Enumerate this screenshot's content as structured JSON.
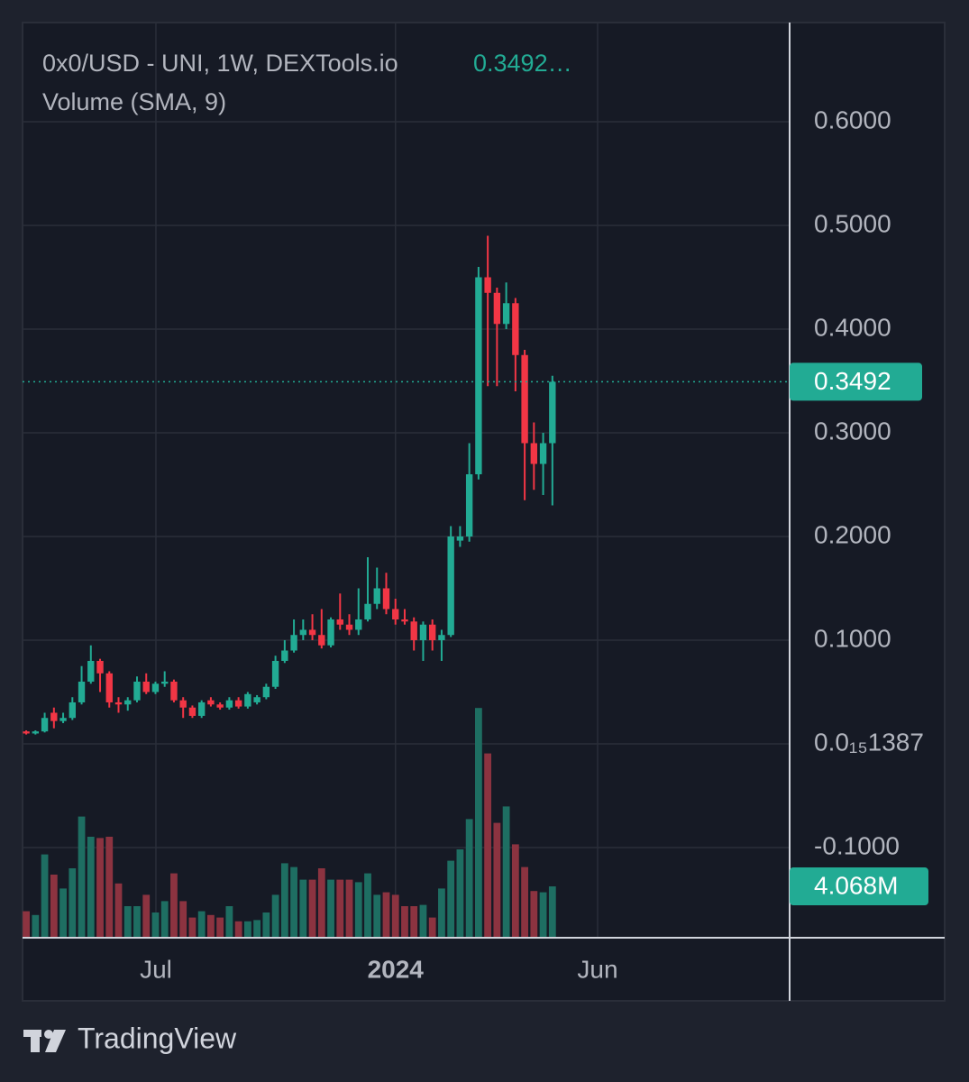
{
  "chart_data": {
    "type": "candlestick",
    "title": "0x0/USD - UNI, 1W, DEXTools.io",
    "title_value": "0.3492…",
    "subtitle": "Volume (SMA, 9)",
    "categories": [
      null,
      null,
      null,
      null,
      null,
      null,
      null,
      null,
      null,
      null,
      null,
      null,
      null,
      null,
      null,
      null,
      null,
      null,
      null,
      null,
      null,
      null,
      null,
      null,
      null,
      null,
      null,
      null,
      null,
      null,
      null,
      null,
      null,
      null,
      null,
      null,
      null,
      null,
      null,
      null,
      null,
      null,
      null,
      null,
      null,
      null,
      null,
      null,
      null,
      null,
      null,
      null,
      null,
      null,
      null,
      null,
      null,
      null
    ],
    "open": [
      0.012,
      0.01,
      0.012,
      0.03,
      0.022,
      0.025,
      0.04,
      0.06,
      0.08,
      0.068,
      0.04,
      0.038,
      0.042,
      0.06,
      0.05,
      0.058,
      0.06,
      0.042,
      0.035,
      0.027,
      0.042,
      0.038,
      0.035,
      0.042,
      0.036,
      0.04,
      0.045,
      0.055,
      0.08,
      0.09,
      0.105,
      0.11,
      0.105,
      0.095,
      0.12,
      0.115,
      0.11,
      0.12,
      0.135,
      0.15,
      0.13,
      0.12,
      0.118,
      0.1,
      0.115,
      0.1,
      0.105,
      0.196,
      0.2,
      0.26,
      0.45,
      0.435,
      0.405,
      0.425,
      0.375,
      0.29,
      0.27,
      0.29
    ],
    "high": [
      0.013,
      0.013,
      0.03,
      0.035,
      0.03,
      0.045,
      0.075,
      0.095,
      0.082,
      0.07,
      0.045,
      0.045,
      0.065,
      0.068,
      0.06,
      0.07,
      0.062,
      0.045,
      0.037,
      0.042,
      0.045,
      0.04,
      0.045,
      0.045,
      0.05,
      0.047,
      0.058,
      0.085,
      0.1,
      0.12,
      0.12,
      0.125,
      0.13,
      0.122,
      0.145,
      0.125,
      0.15,
      0.18,
      0.17,
      0.165,
      0.14,
      0.13,
      0.122,
      0.118,
      0.12,
      0.11,
      0.21,
      0.21,
      0.29,
      0.46,
      0.49,
      0.44,
      0.445,
      0.43,
      0.38,
      0.31,
      0.3,
      0.355
    ],
    "low": [
      0.009,
      0.009,
      0.011,
      0.015,
      0.02,
      0.023,
      0.038,
      0.058,
      0.05,
      0.035,
      0.03,
      0.032,
      0.04,
      0.048,
      0.048,
      0.055,
      0.04,
      0.025,
      0.025,
      0.025,
      0.036,
      0.033,
      0.033,
      0.034,
      0.034,
      0.038,
      0.043,
      0.053,
      0.078,
      0.088,
      0.1,
      0.1,
      0.092,
      0.093,
      0.11,
      0.105,
      0.105,
      0.118,
      0.13,
      0.125,
      0.115,
      0.115,
      0.09,
      0.08,
      0.09,
      0.08,
      0.103,
      0.19,
      0.195,
      0.255,
      0.345,
      0.345,
      0.4,
      0.34,
      0.235,
      0.245,
      0.24,
      0.23
    ],
    "close": [
      0.01,
      0.012,
      0.025,
      0.022,
      0.025,
      0.04,
      0.06,
      0.08,
      0.068,
      0.04,
      0.038,
      0.042,
      0.06,
      0.05,
      0.058,
      0.06,
      0.042,
      0.035,
      0.027,
      0.04,
      0.038,
      0.035,
      0.042,
      0.036,
      0.048,
      0.045,
      0.055,
      0.08,
      0.09,
      0.105,
      0.11,
      0.105,
      0.095,
      0.12,
      0.115,
      0.11,
      0.12,
      0.135,
      0.15,
      0.13,
      0.12,
      0.118,
      0.1,
      0.115,
      0.1,
      0.105,
      0.2,
      0.2,
      0.26,
      0.45,
      0.435,
      0.405,
      0.425,
      0.375,
      0.29,
      0.27,
      0.29,
      0.3492
    ],
    "volume": [
      2.1,
      1.8,
      6.6,
      5.0,
      3.9,
      5.5,
      9.6,
      8.0,
      7.9,
      8.0,
      4.3,
      2.5,
      2.5,
      3.4,
      2.0,
      2.9,
      5.1,
      2.9,
      1.6,
      2.1,
      1.8,
      1.6,
      2.5,
      1.3,
      1.3,
      1.4,
      2.0,
      3.4,
      5.9,
      5.6,
      4.6,
      4.6,
      5.5,
      4.6,
      4.6,
      4.6,
      4.4,
      5.1,
      3.4,
      3.6,
      3.4,
      2.5,
      2.5,
      2.6,
      1.6,
      3.9,
      6.1,
      7.0,
      9.4,
      18.2,
      14.6,
      9.1,
      10.4,
      7.4,
      5.6,
      3.7,
      3.6,
      4.068
    ],
    "up_color": "#22ab94",
    "down_color": "#f23645",
    "volume_up_color": "#1e6e62",
    "volume_down_color": "#8c3340",
    "ylim": [
      -0.187,
      0.6957
    ],
    "yticks": [
      {
        "value": 0.6,
        "label": "0.6000"
      },
      {
        "value": 0.5,
        "label": "0.5000"
      },
      {
        "value": 0.4,
        "label": "0.4000"
      },
      {
        "value": 0.3,
        "label": "0.3000"
      },
      {
        "value": 0.2,
        "label": "0.2000"
      },
      {
        "value": 0.1,
        "label": "0.1000"
      },
      {
        "value": 0,
        "label": "0.0₁₅1387"
      },
      {
        "value": -0.1,
        "label": "-0.1000"
      }
    ],
    "volume_lim": [
      0,
      72.5
    ],
    "xlim": [
      -0.4,
      82.7
    ],
    "xticks": [
      {
        "value": 14.05,
        "label": "Jul"
      },
      {
        "value": 40.0,
        "label": "2024"
      },
      {
        "value": 61.9,
        "label": "Jun"
      }
    ],
    "last_price": {
      "value": 0.3492,
      "label": "0.3492"
    },
    "last_volume": {
      "value": 4.068,
      "label": "4.068M"
    },
    "grid": true
  },
  "footer": {
    "brand": "TradingView"
  }
}
